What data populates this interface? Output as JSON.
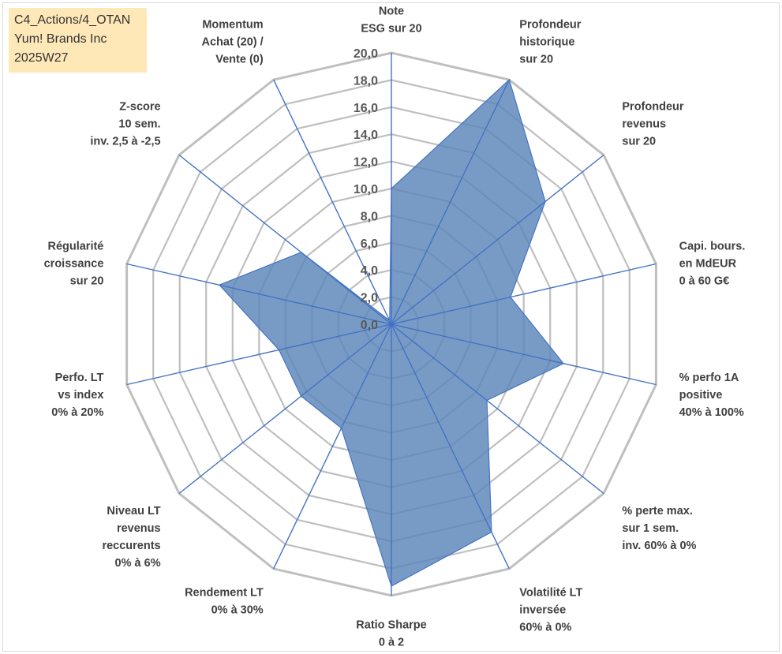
{
  "info_box": {
    "line1": "C4_Actions/4_OTAN",
    "line2": "Yum! Brands Inc",
    "line3": "2025W27"
  },
  "colors": {
    "fill": "#5a85b9",
    "series_line": "#4472c4",
    "grid": "#bfbfbf",
    "info_bg": "#ffe8b8"
  },
  "chart_data": {
    "type": "radar",
    "title": "",
    "rmin": 0,
    "rmax": 20,
    "tick_step": 2,
    "tick_labels": [
      "0,0",
      "2,0",
      "4,0",
      "6,0",
      "8,0",
      "10,0",
      "12,0",
      "14,0",
      "16,0",
      "18,0",
      "20,0"
    ],
    "categories": [
      [
        "Note",
        "ESG sur 20"
      ],
      [
        "Profondeur",
        "historique",
        "sur 20"
      ],
      [
        "Profondeur",
        "revenus",
        "sur 20"
      ],
      [
        "Capi. bours.",
        "en MdEUR",
        "0 à 60 G€"
      ],
      [
        "% perfo 1A",
        "positive",
        "40% à 100%"
      ],
      [
        "% perte max.",
        "sur 1 sem.",
        "inv. 60% à 0%"
      ],
      [
        "Volatilité LT",
        "inversée",
        "60% à 0%"
      ],
      [
        "Ratio Sharpe",
        "0 à 2"
      ],
      [
        "Rendement LT",
        "0% à 30%"
      ],
      [
        "Niveau LT",
        "revenus",
        "reccurents",
        "0% à 6%"
      ],
      [
        "Perfo. LT",
        "vs index",
        "0% à 20%"
      ],
      [
        "Régularité",
        "croissance",
        "sur 20"
      ],
      [
        "Z-score",
        "10 sem.",
        "inv. 2,5 à -2,5"
      ],
      [
        "Momentum",
        "Achat (20) /",
        "Vente (0)"
      ]
    ],
    "series": [
      {
        "values": [
          10.0,
          20.0,
          14.5,
          9.0,
          13.0,
          9.0,
          17.0,
          19.3,
          8.5,
          8.5,
          8.5,
          13.0,
          8.5,
          0.3
        ]
      }
    ],
    "legend": "none"
  }
}
